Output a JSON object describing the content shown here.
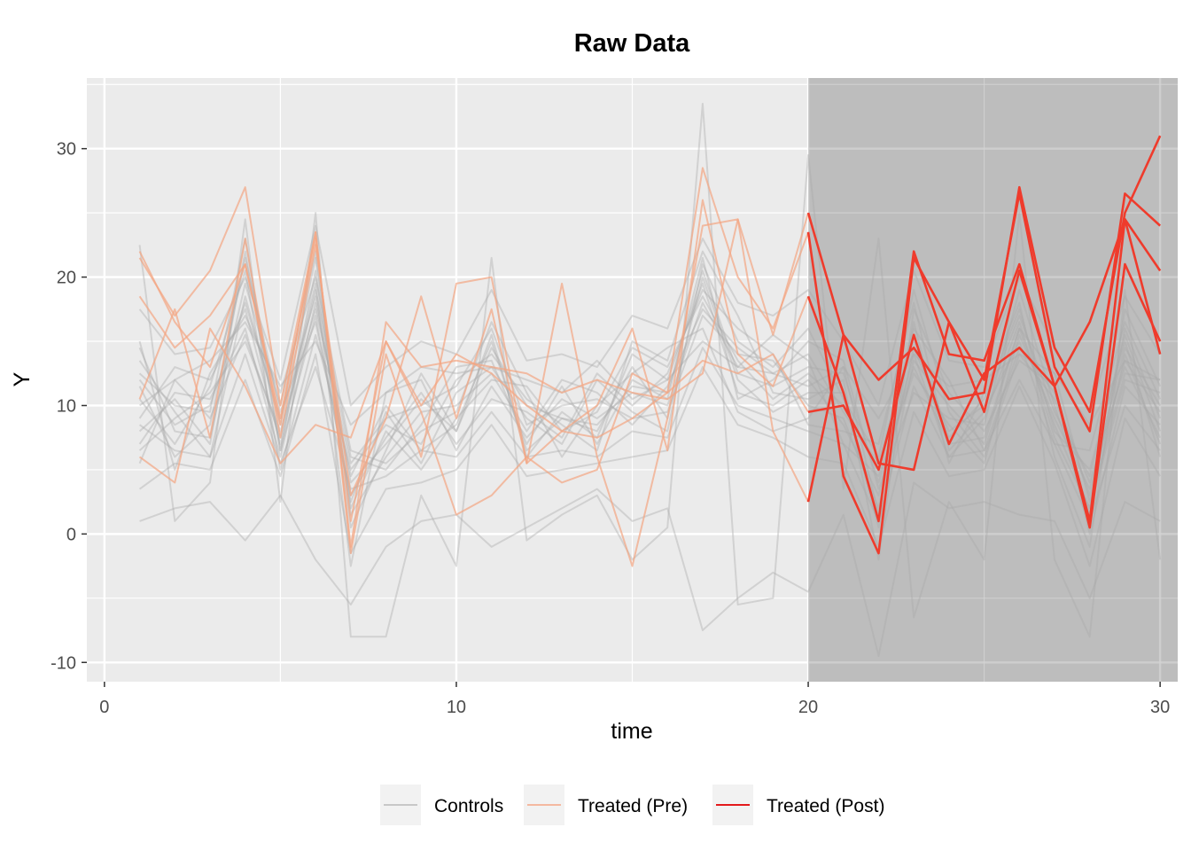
{
  "chart_data": {
    "type": "line",
    "title": "Raw Data",
    "xlabel": "time",
    "ylabel": "Y",
    "xlim": [
      -0.5,
      30.5
    ],
    "ylim": [
      -11.5,
      35.5
    ],
    "x_ticks": [
      0,
      10,
      20,
      30
    ],
    "y_ticks": [
      -10,
      0,
      10,
      20,
      30
    ],
    "treatment_start": 20,
    "grid": true,
    "legend_position": "bottom",
    "legend": [
      {
        "label": "Controls",
        "color": "#b8b8b8"
      },
      {
        "label": "Treated (Pre)",
        "color": "#f4a582"
      },
      {
        "label": "Treated (Post)",
        "color": "#e31a1c"
      }
    ],
    "colors": {
      "panel_bg": "#ebebeb",
      "post_shade": "#bdbdbd",
      "grid": "#ffffff",
      "controls": "#a9a9a9",
      "treated_pre": "#f4a582",
      "treated_post": "#ef3b2c"
    },
    "time": [
      1,
      2,
      3,
      4,
      5,
      6,
      7,
      8,
      9,
      10,
      11,
      12,
      13,
      14,
      15,
      16,
      17,
      18,
      19,
      20,
      21,
      22,
      23,
      24,
      25,
      26,
      27,
      28,
      29,
      30
    ],
    "treated": [
      {
        "pre": [
          21.5,
          17.0,
          20.5,
          27.0,
          10.0,
          23.5,
          -1.0,
          16.5,
          13.0,
          13.5,
          13.0,
          12.5,
          11.0,
          12.0,
          11.0,
          10.5,
          12.5,
          24.5,
          15.5,
          25.0
        ],
        "post": [
          15.5,
          12.0,
          14.5,
          10.5,
          11.0,
          27.0,
          14.5,
          9.5,
          25.0,
          31.0
        ]
      },
      {
        "pre": [
          22.0,
          16.5,
          13.0,
          21.0,
          9.0,
          23.0,
          1.0,
          15.0,
          10.0,
          14.0,
          12.5,
          10.0,
          8.0,
          7.5,
          9.0,
          11.0,
          28.5,
          20.0,
          16.0,
          23.5
        ],
        "post": [
          4.5,
          -1.5,
          21.5,
          16.5,
          12.0,
          26.5,
          13.0,
          8.0,
          26.5,
          24.0
        ]
      },
      {
        "pre": [
          10.5,
          17.5,
          7.5,
          23.0,
          7.5,
          22.5,
          3.0,
          9.0,
          18.5,
          9.0,
          17.5,
          5.5,
          8.0,
          10.0,
          16.0,
          6.5,
          26.0,
          14.0,
          11.5,
          18.5
        ],
        "post": [
          11.0,
          1.0,
          22.0,
          14.0,
          13.5,
          21.0,
          11.5,
          1.0,
          24.5,
          20.5
        ]
      },
      {
        "pre": [
          18.5,
          14.5,
          17.0,
          21.0,
          8.5,
          23.5,
          -1.5,
          14.0,
          6.0,
          19.5,
          20.0,
          5.5,
          19.5,
          6.0,
          -2.5,
          9.0,
          24.0,
          24.5,
          8.0,
          2.5
        ],
        "post": [
          15.5,
          5.5,
          5.0,
          16.5,
          9.5,
          20.5,
          11.5,
          0.5,
          21.0,
          15.0
        ]
      },
      {
        "pre": [
          6.0,
          4.0,
          16.0,
          11.5,
          5.5,
          8.5,
          7.5,
          15.0,
          9.5,
          1.5,
          3.0,
          6.0,
          4.0,
          5.0,
          12.5,
          11.0,
          13.5,
          12.5,
          14.0,
          9.5
        ],
        "post": [
          10.0,
          5.0,
          15.5,
          7.0,
          12.5,
          14.5,
          11.5,
          16.5,
          24.5,
          14.0
        ]
      }
    ],
    "controls": [
      [
        12.0,
        8.5,
        10.0,
        18.0,
        9.0,
        18.5,
        4.0,
        7.0,
        10.5,
        8.0,
        15.5,
        6.0,
        9.5,
        7.5,
        14.0,
        12.0,
        19.5,
        11.0,
        10.0,
        12.0,
        8.5,
        3.0,
        14.0,
        6.0,
        9.0,
        16.5,
        7.5,
        2.0,
        16.0,
        9.0
      ],
      [
        8.0,
        10.5,
        7.0,
        22.0,
        6.5,
        17.0,
        2.5,
        9.5,
        5.5,
        11.0,
        13.0,
        9.0,
        7.0,
        12.0,
        9.5,
        8.0,
        21.0,
        15.0,
        13.0,
        16.0,
        10.5,
        6.0,
        19.0,
        9.5,
        6.0,
        14.0,
        10.5,
        4.0,
        13.0,
        7.5
      ],
      [
        15.0,
        5.0,
        12.5,
        17.0,
        11.0,
        20.0,
        6.5,
        5.5,
        8.0,
        9.5,
        16.5,
        11.0,
        6.0,
        10.0,
        12.5,
        14.5,
        16.0,
        9.5,
        8.0,
        9.0,
        13.0,
        1.5,
        16.5,
        5.5,
        11.0,
        18.0,
        6.0,
        -1.0,
        17.5,
        11.5
      ],
      [
        5.5,
        12.0,
        9.0,
        15.5,
        7.5,
        19.5,
        -2.5,
        11.0,
        12.0,
        6.5,
        11.5,
        7.5,
        10.5,
        9.0,
        11.0,
        10.0,
        18.0,
        13.0,
        15.5,
        13.5,
        7.0,
        4.5,
        12.5,
        8.5,
        5.5,
        15.5,
        9.0,
        3.5,
        14.5,
        10.0
      ],
      [
        10.5,
        7.0,
        11.5,
        20.5,
        5.0,
        15.5,
        5.0,
        8.5,
        7.0,
        12.0,
        14.0,
        10.5,
        8.5,
        6.5,
        15.0,
        13.5,
        22.0,
        17.0,
        11.0,
        10.5,
        12.0,
        -2.0,
        17.5,
        11.0,
        8.0,
        13.5,
        11.5,
        0.0,
        11.5,
        8.5
      ],
      [
        13.5,
        9.5,
        6.0,
        18.5,
        8.5,
        21.5,
        1.5,
        6.0,
        9.5,
        10.0,
        12.5,
        8.0,
        12.0,
        11.0,
        8.5,
        11.5,
        17.5,
        14.5,
        12.5,
        14.0,
        9.5,
        5.5,
        15.5,
        7.5,
        10.5,
        17.5,
        8.0,
        5.0,
        15.0,
        6.0
      ],
      [
        7.0,
        11.0,
        10.5,
        16.0,
        6.0,
        18.0,
        4.5,
        10.0,
        6.5,
        8.5,
        15.0,
        6.5,
        9.0,
        8.0,
        13.0,
        9.0,
        20.0,
        12.0,
        9.5,
        11.0,
        11.0,
        0.5,
        13.5,
        10.0,
        7.0,
        16.0,
        12.5,
        2.5,
        12.5,
        12.0
      ],
      [
        11.5,
        6.0,
        8.5,
        21.5,
        9.5,
        16.5,
        3.0,
        7.5,
        11.0,
        7.0,
        10.5,
        9.5,
        7.5,
        12.5,
        10.0,
        12.5,
        19.0,
        16.0,
        14.0,
        8.5,
        8.0,
        7.0,
        18.0,
        6.5,
        9.5,
        15.0,
        7.0,
        6.5,
        16.5,
        10.5
      ],
      [
        9.0,
        13.0,
        12.0,
        17.5,
        7.0,
        19.0,
        6.0,
        5.0,
        8.5,
        13.0,
        13.5,
        7.0,
        11.5,
        7.0,
        12.0,
        10.5,
        21.5,
        10.5,
        12.0,
        15.0,
        13.5,
        3.5,
        11.0,
        9.0,
        8.5,
        19.0,
        10.0,
        1.5,
        14.0,
        7.0
      ],
      [
        14.5,
        8.0,
        7.5,
        19.5,
        10.0,
        22.0,
        2.0,
        8.0,
        5.0,
        9.0,
        12.0,
        11.5,
        8.0,
        9.5,
        14.5,
        13.0,
        18.5,
        13.5,
        10.5,
        12.5,
        10.0,
        5.0,
        16.0,
        12.0,
        6.5,
        14.5,
        11.0,
        3.0,
        13.5,
        9.5
      ],
      [
        6.5,
        9.0,
        11.0,
        15.0,
        8.0,
        17.5,
        5.5,
        9.0,
        10.0,
        11.5,
        16.0,
        8.5,
        10.0,
        10.5,
        9.0,
        9.5,
        17.0,
        14.0,
        13.5,
        10.0,
        9.0,
        2.0,
        14.5,
        8.0,
        10.0,
        17.0,
        9.5,
        4.5,
        15.5,
        8.0
      ],
      [
        12.5,
        10.0,
        9.5,
        23.0,
        6.5,
        20.5,
        0.5,
        6.5,
        12.5,
        8.0,
        14.5,
        10.0,
        9.0,
        8.5,
        11.5,
        11.0,
        20.5,
        12.5,
        11.5,
        13.0,
        12.5,
        4.0,
        13.0,
        7.0,
        7.5,
        16.0,
        8.5,
        2.0,
        12.0,
        11.0
      ],
      [
        22.5,
        1.0,
        4.0,
        24.5,
        2.5,
        25.0,
        -8.0,
        -8.0,
        3.0,
        -2.5,
        21.5,
        -0.5,
        1.5,
        3.0,
        -2.0,
        0.5,
        33.5,
        -5.5,
        -5.0,
        29.5,
        3.5,
        23.0,
        -6.5,
        2.5,
        -2.0,
        25.0,
        -2.0,
        -8.0,
        19.0,
        -2.0
      ],
      [
        1.0,
        2.0,
        2.5,
        -0.5,
        3.0,
        -2.0,
        -5.5,
        -1.0,
        1.0,
        1.5,
        -1.0,
        0.5,
        2.0,
        3.5,
        1.0,
        2.0,
        -7.5,
        -5.0,
        -3.0,
        -4.5,
        1.5,
        -9.5,
        4.0,
        2.0,
        2.5,
        1.5,
        1.0,
        -5.0,
        2.5,
        1.0
      ],
      [
        17.5,
        14.0,
        14.5,
        20.0,
        12.0,
        24.0,
        10.0,
        13.0,
        15.0,
        14.0,
        19.0,
        13.5,
        14.0,
        13.0,
        17.0,
        16.0,
        23.0,
        18.0,
        17.0,
        19.0,
        15.0,
        10.0,
        20.5,
        13.5,
        13.0,
        20.0,
        14.5,
        9.5,
        18.5,
        14.0
      ],
      [
        3.5,
        5.5,
        5.0,
        12.0,
        4.5,
        14.0,
        -1.5,
        3.5,
        4.0,
        5.0,
        8.5,
        4.5,
        5.0,
        5.5,
        6.0,
        6.5,
        13.0,
        8.5,
        7.5,
        6.0,
        5.5,
        -1.0,
        9.5,
        4.5,
        5.0,
        11.5,
        5.5,
        -2.5,
        9.0,
        4.5
      ],
      [
        10.0,
        12.0,
        13.5,
        16.5,
        11.5,
        15.0,
        8.5,
        11.0,
        13.0,
        12.5,
        13.0,
        12.0,
        11.0,
        13.5,
        10.5,
        12.0,
        15.0,
        13.0,
        12.5,
        11.5,
        13.0,
        9.0,
        14.0,
        11.5,
        12.0,
        14.0,
        12.5,
        8.5,
        13.5,
        12.0
      ],
      [
        8.5,
        6.5,
        6.0,
        14.0,
        5.5,
        13.0,
        3.5,
        4.5,
        6.5,
        6.0,
        9.5,
        6.0,
        6.5,
        6.0,
        8.0,
        7.5,
        14.5,
        10.0,
        9.0,
        8.0,
        7.0,
        1.0,
        11.5,
        6.0,
        6.5,
        12.0,
        7.0,
        1.0,
        10.0,
        6.5
      ]
    ]
  }
}
